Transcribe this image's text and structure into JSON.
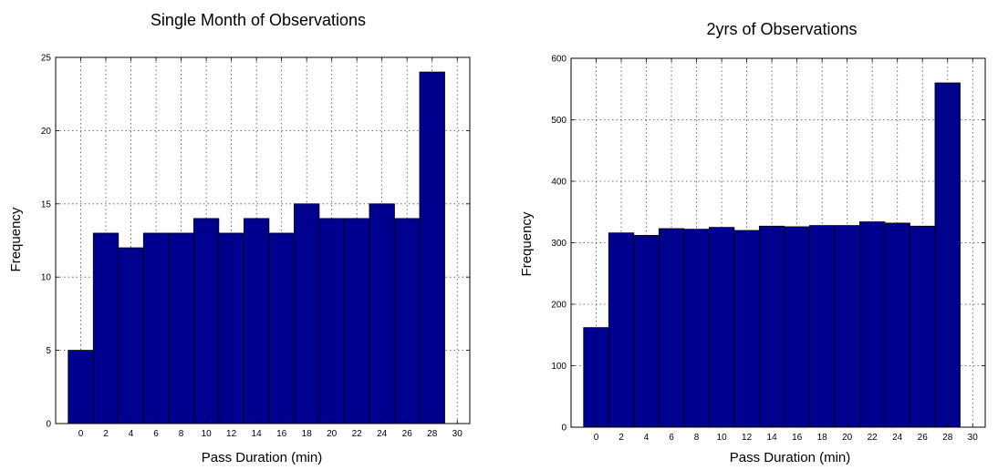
{
  "chart_data": [
    {
      "type": "bar",
      "title": "Single Month of Observations",
      "xlabel": "Pass Duration (min)",
      "ylabel": "Frequency",
      "x": [
        0,
        2,
        4,
        6,
        8,
        10,
        12,
        14,
        16,
        18,
        20,
        22,
        24,
        26,
        28
      ],
      "values": [
        5,
        13,
        12,
        13,
        13,
        14,
        13,
        14,
        13,
        15,
        14,
        14,
        15,
        14,
        24
      ],
      "xlim": [
        -2,
        31
      ],
      "ylim": [
        0,
        25
      ],
      "xticks": [
        "0",
        "2",
        "4",
        "6",
        "8",
        "10",
        "12",
        "14",
        "16",
        "18",
        "20",
        "22",
        "24",
        "26",
        "28",
        "30"
      ],
      "yticks": [
        "0",
        "5",
        "10",
        "15",
        "20",
        "25"
      ],
      "grid": true,
      "color": "#00008f"
    },
    {
      "type": "bar",
      "title": "2yrs of Observations",
      "xlabel": "Pass Duration (min)",
      "ylabel": "Frequency",
      "x": [
        0,
        2,
        4,
        6,
        8,
        10,
        12,
        14,
        16,
        18,
        20,
        22,
        24,
        26,
        28
      ],
      "values": [
        162,
        316,
        312,
        323,
        322,
        325,
        320,
        327,
        326,
        328,
        328,
        334,
        332,
        327,
        560
      ],
      "xlim": [
        -2,
        31
      ],
      "ylim": [
        0,
        600
      ],
      "xticks": [
        "0",
        "2",
        "4",
        "6",
        "8",
        "10",
        "12",
        "14",
        "16",
        "18",
        "20",
        "22",
        "24",
        "26",
        "28",
        "30"
      ],
      "yticks": [
        "0",
        "100",
        "200",
        "300",
        "400",
        "500",
        "600"
      ],
      "grid": true,
      "color": "#00008f"
    }
  ]
}
